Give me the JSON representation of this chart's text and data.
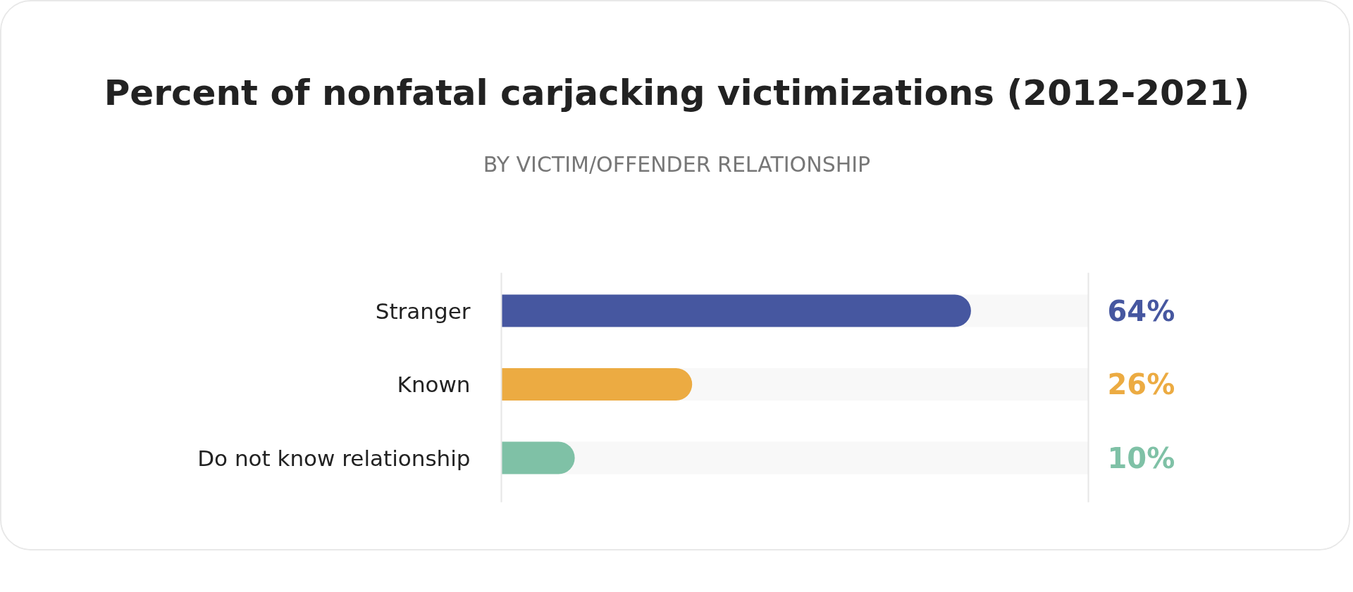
{
  "chart_data": {
    "type": "bar",
    "orientation": "horizontal",
    "title": "Percent of nonfatal carjacking victimizations (2012-2021)",
    "subtitle": "BY VICTIM/OFFENDER RELATIONSHIP",
    "categories": [
      "Stranger",
      "Known",
      "Do not know relationship"
    ],
    "values": [
      64,
      26,
      10
    ],
    "colors": [
      "#4657a0",
      "#ecab42",
      "#7fc1a6"
    ],
    "value_labels": [
      "64%",
      "26%",
      "10%"
    ],
    "tick_labels": "y"
  }
}
